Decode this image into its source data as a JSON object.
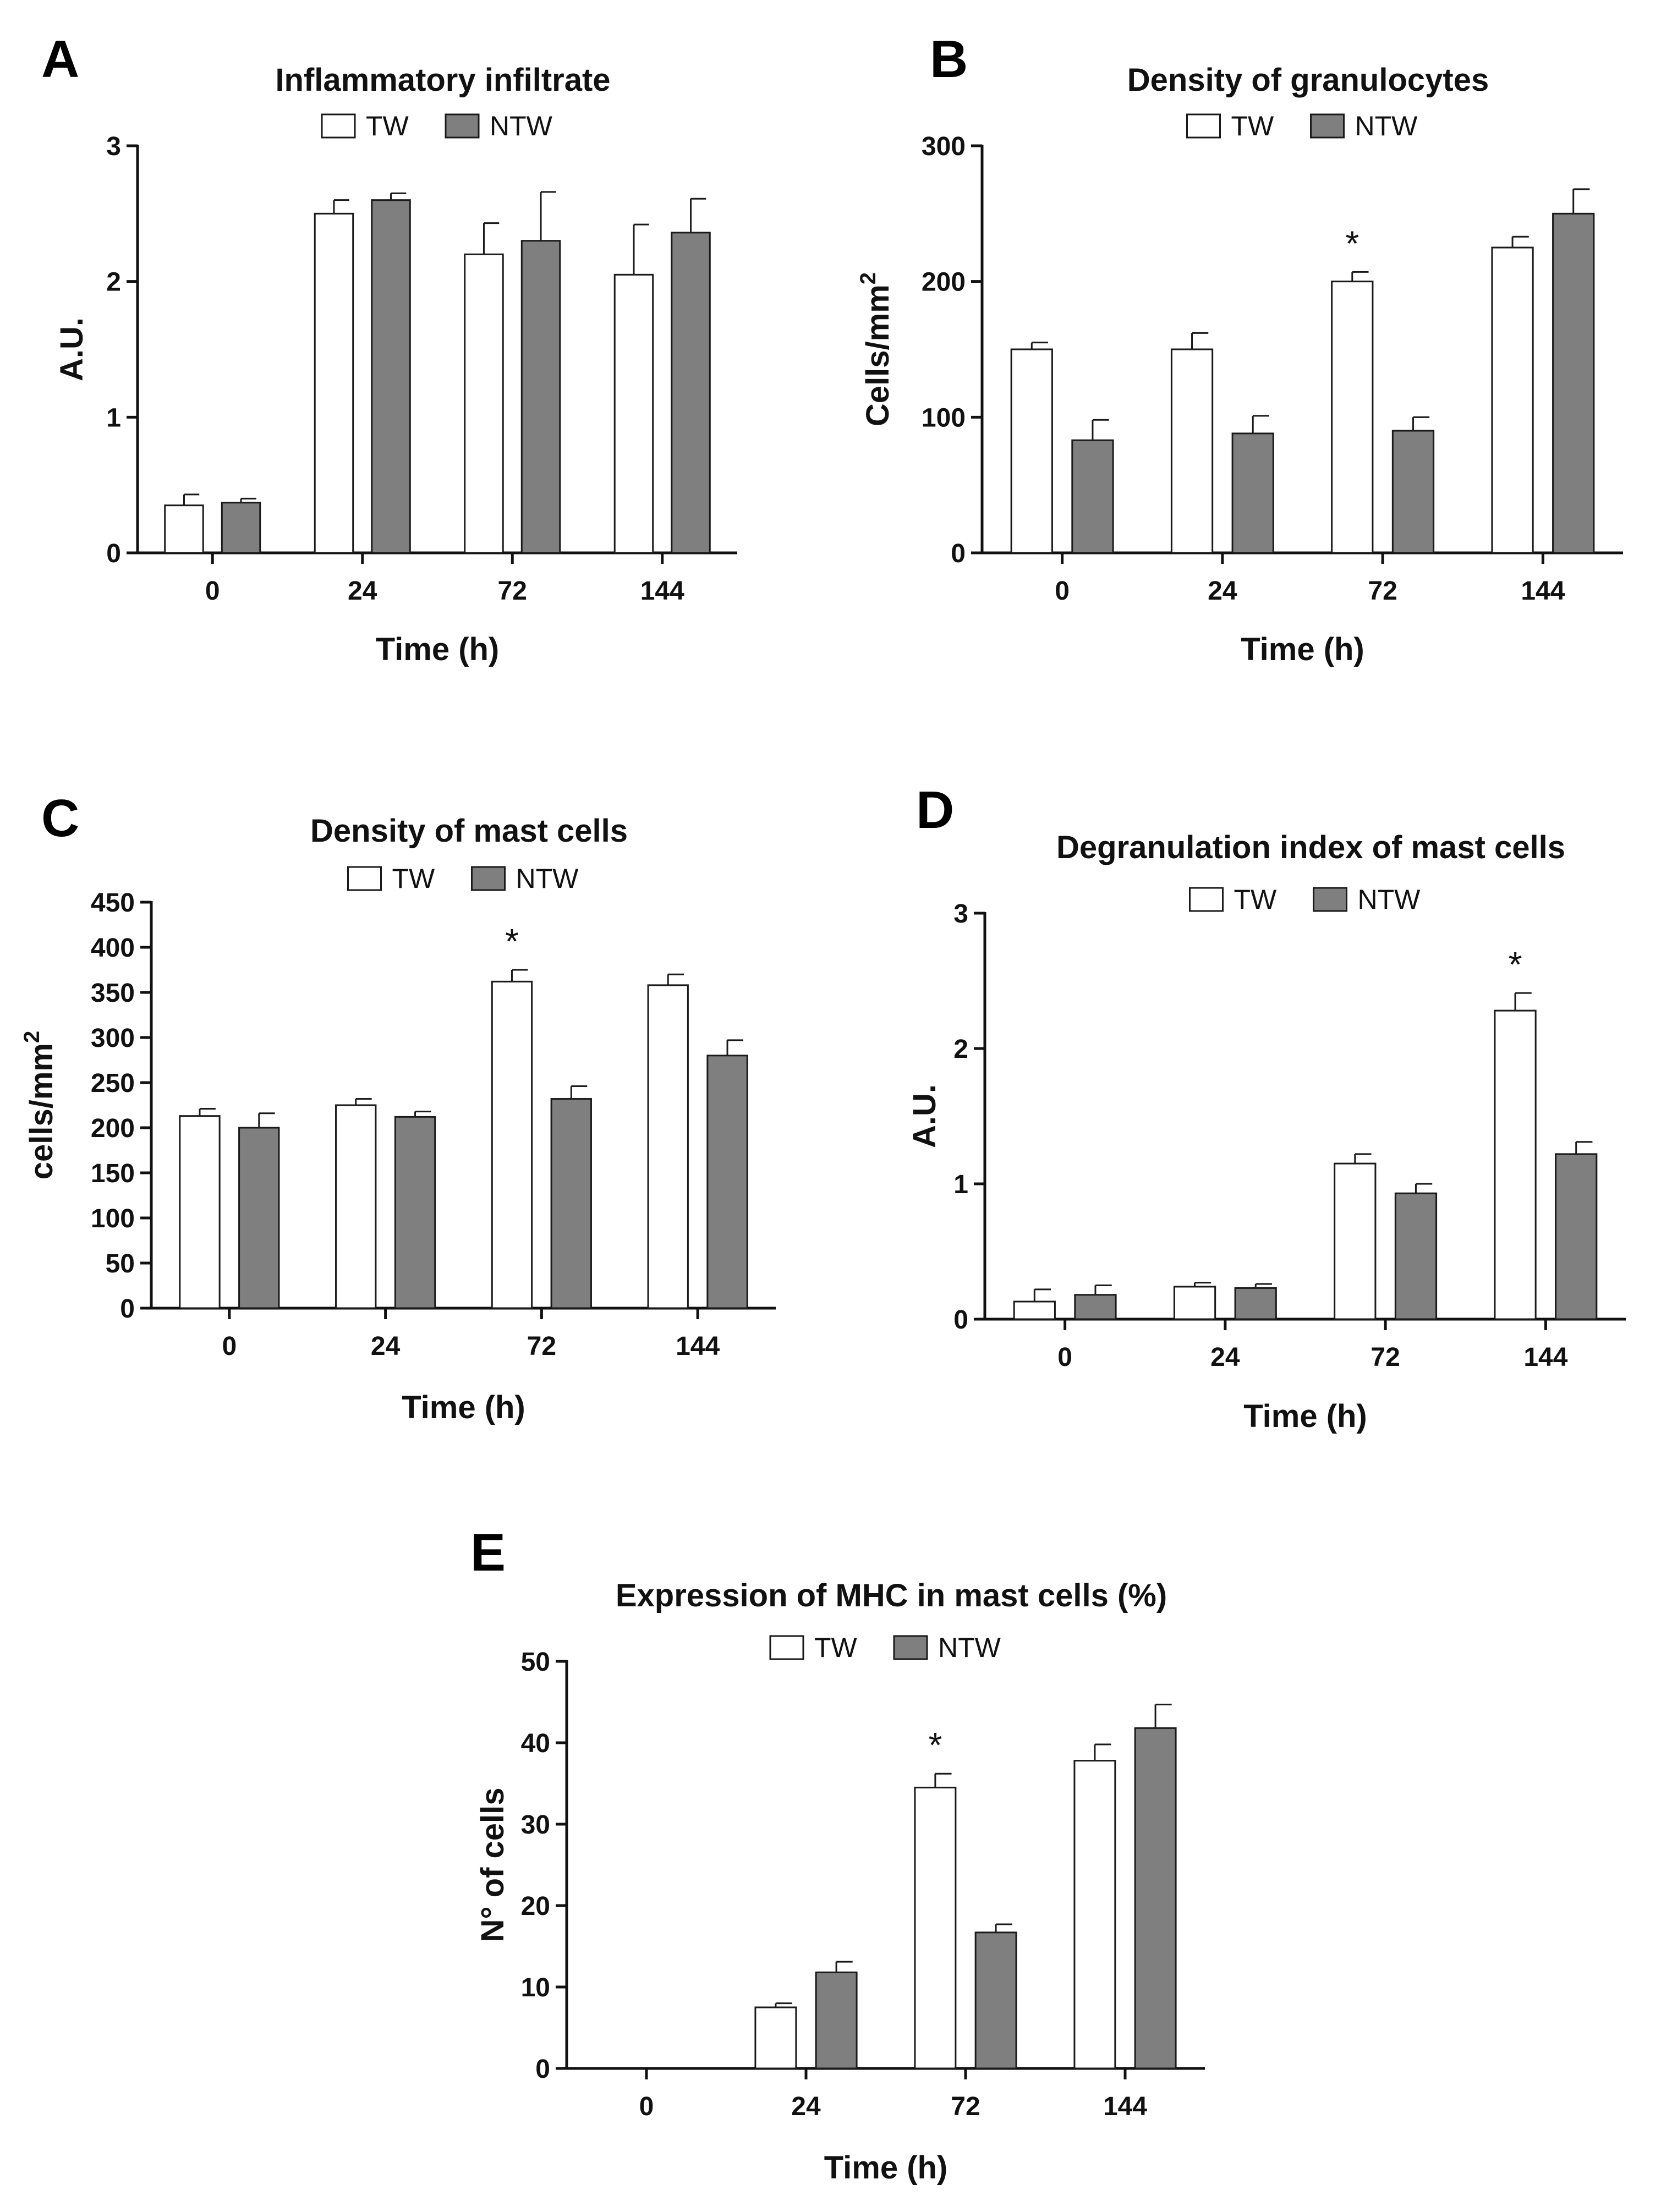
{
  "legend": {
    "tw": "TW",
    "ntw": "NTW"
  },
  "colors": {
    "tw": "#ffffff",
    "ntw": "#7f7f7f",
    "stroke": "#1a1a1a"
  },
  "chart_data": [
    {
      "panel": "A",
      "type": "bar",
      "title": "Inflammatory infiltrate",
      "xlabel": "Time (h)",
      "ylabel": "A.U.",
      "ylabel_sup": "",
      "categories": [
        "0",
        "24",
        "72",
        "144"
      ],
      "ylim": [
        0,
        3
      ],
      "yticks": [
        0,
        1,
        2,
        3
      ],
      "series": [
        {
          "name": "TW",
          "values": [
            0.35,
            2.5,
            2.2,
            2.05
          ],
          "errors": [
            0.08,
            0.1,
            0.23,
            0.37
          ]
        },
        {
          "name": "NTW",
          "values": [
            0.37,
            2.6,
            2.3,
            2.36
          ],
          "errors": [
            0.03,
            0.05,
            0.36,
            0.25
          ]
        }
      ],
      "stars": []
    },
    {
      "panel": "B",
      "type": "bar",
      "title": "Density of granulocytes",
      "xlabel": "Time (h)",
      "ylabel": "Cells/mm",
      "ylabel_sup": "2",
      "categories": [
        "0",
        "24",
        "72",
        "144"
      ],
      "ylim": [
        0,
        300
      ],
      "yticks": [
        0,
        100,
        200,
        300
      ],
      "series": [
        {
          "name": "TW",
          "values": [
            150,
            150,
            200,
            225
          ],
          "errors": [
            5,
            12,
            7,
            8
          ]
        },
        {
          "name": "NTW",
          "values": [
            83,
            88,
            90,
            250
          ],
          "errors": [
            15,
            13,
            10,
            18
          ]
        }
      ],
      "stars": [
        {
          "category": 2,
          "series": 0,
          "label": "*"
        }
      ]
    },
    {
      "panel": "C",
      "type": "bar",
      "title": "Density of mast cells",
      "xlabel": "Time (h)",
      "ylabel": "cells/mm",
      "ylabel_sup": "2",
      "categories": [
        "0",
        "24",
        "72",
        "144"
      ],
      "ylim": [
        0,
        450
      ],
      "yticks": [
        0,
        50,
        100,
        150,
        200,
        250,
        300,
        350,
        400,
        450
      ],
      "series": [
        {
          "name": "TW",
          "values": [
            213,
            225,
            362,
            358
          ],
          "errors": [
            8,
            7,
            13,
            12
          ]
        },
        {
          "name": "NTW",
          "values": [
            200,
            212,
            232,
            280
          ],
          "errors": [
            16,
            6,
            14,
            17
          ]
        }
      ],
      "stars": [
        {
          "category": 2,
          "series": 0,
          "label": "*"
        }
      ]
    },
    {
      "panel": "D",
      "type": "bar",
      "title": "Degranulation index of mast cells",
      "xlabel": "Time (h)",
      "ylabel": "A.U.",
      "ylabel_sup": "",
      "categories": [
        "0",
        "24",
        "72",
        "144"
      ],
      "ylim": [
        0,
        3
      ],
      "yticks": [
        0,
        1,
        2,
        3
      ],
      "series": [
        {
          "name": "TW",
          "values": [
            0.13,
            0.24,
            1.15,
            2.28
          ],
          "errors": [
            0.09,
            0.03,
            0.07,
            0.13
          ]
        },
        {
          "name": "NTW",
          "values": [
            0.18,
            0.23,
            0.93,
            1.22
          ],
          "errors": [
            0.07,
            0.03,
            0.07,
            0.09
          ]
        }
      ],
      "stars": [
        {
          "category": 3,
          "series": 0,
          "label": "*"
        }
      ]
    },
    {
      "panel": "E",
      "type": "bar",
      "title": "Expression of MHC in mast cells (%)",
      "xlabel": "Time (h)",
      "ylabel": "N° of cells",
      "ylabel_sup": "",
      "categories": [
        "0",
        "24",
        "72",
        "144"
      ],
      "ylim": [
        0,
        50
      ],
      "yticks": [
        0,
        10,
        20,
        30,
        40,
        50
      ],
      "series": [
        {
          "name": "TW",
          "values": [
            0,
            7.5,
            34.5,
            37.8
          ],
          "errors": [
            0,
            0.5,
            1.7,
            2
          ]
        },
        {
          "name": "NTW",
          "values": [
            0,
            11.8,
            16.7,
            41.8
          ],
          "errors": [
            0,
            1.3,
            1,
            2.9
          ]
        }
      ],
      "stars": [
        {
          "category": 2,
          "series": 0,
          "label": "*"
        }
      ]
    }
  ]
}
